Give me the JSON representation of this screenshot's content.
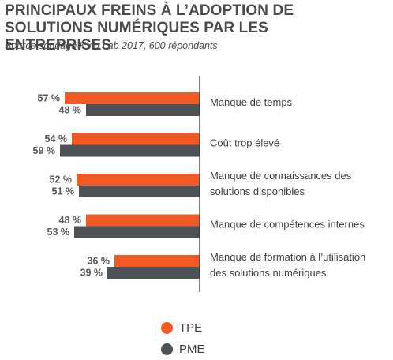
{
  "title": "PRINCIPAUX FREINS À L’ADOPTION DE SOLUTIONS NUMÉRIQUES PAR LES ENTREPRISES",
  "subtitle": "Source sondage KYU Lab 2017, 600 répondants",
  "colors": {
    "TPE": "#f15a24",
    "PME": "#4d5257",
    "axis": "#2e2e2e"
  },
  "chart_data": {
    "type": "bar",
    "orientation": "horizontal",
    "categories": [
      [
        "Manque de temps"
      ],
      [
        "Coût trop élevé"
      ],
      [
        "Manque de connaissances des",
        "solutions disponibles"
      ],
      [
        "Manque de compétences internes"
      ],
      [
        "Manque de formation à l’utilisation",
        "des solutions numériques"
      ]
    ],
    "series": [
      {
        "name": "TPE",
        "values": [
          57,
          54,
          52,
          48,
          36
        ],
        "labels": [
          "57 %",
          "54 %",
          "52 %",
          "48 %",
          "36 %"
        ]
      },
      {
        "name": "PME",
        "values": [
          48,
          59,
          51,
          53,
          39
        ],
        "labels": [
          "48 %",
          "59 %",
          "51 %",
          "53 %",
          "39 %"
        ]
      }
    ],
    "xlim": [
      0,
      100
    ],
    "legend_position": "bottom",
    "grid": false
  }
}
